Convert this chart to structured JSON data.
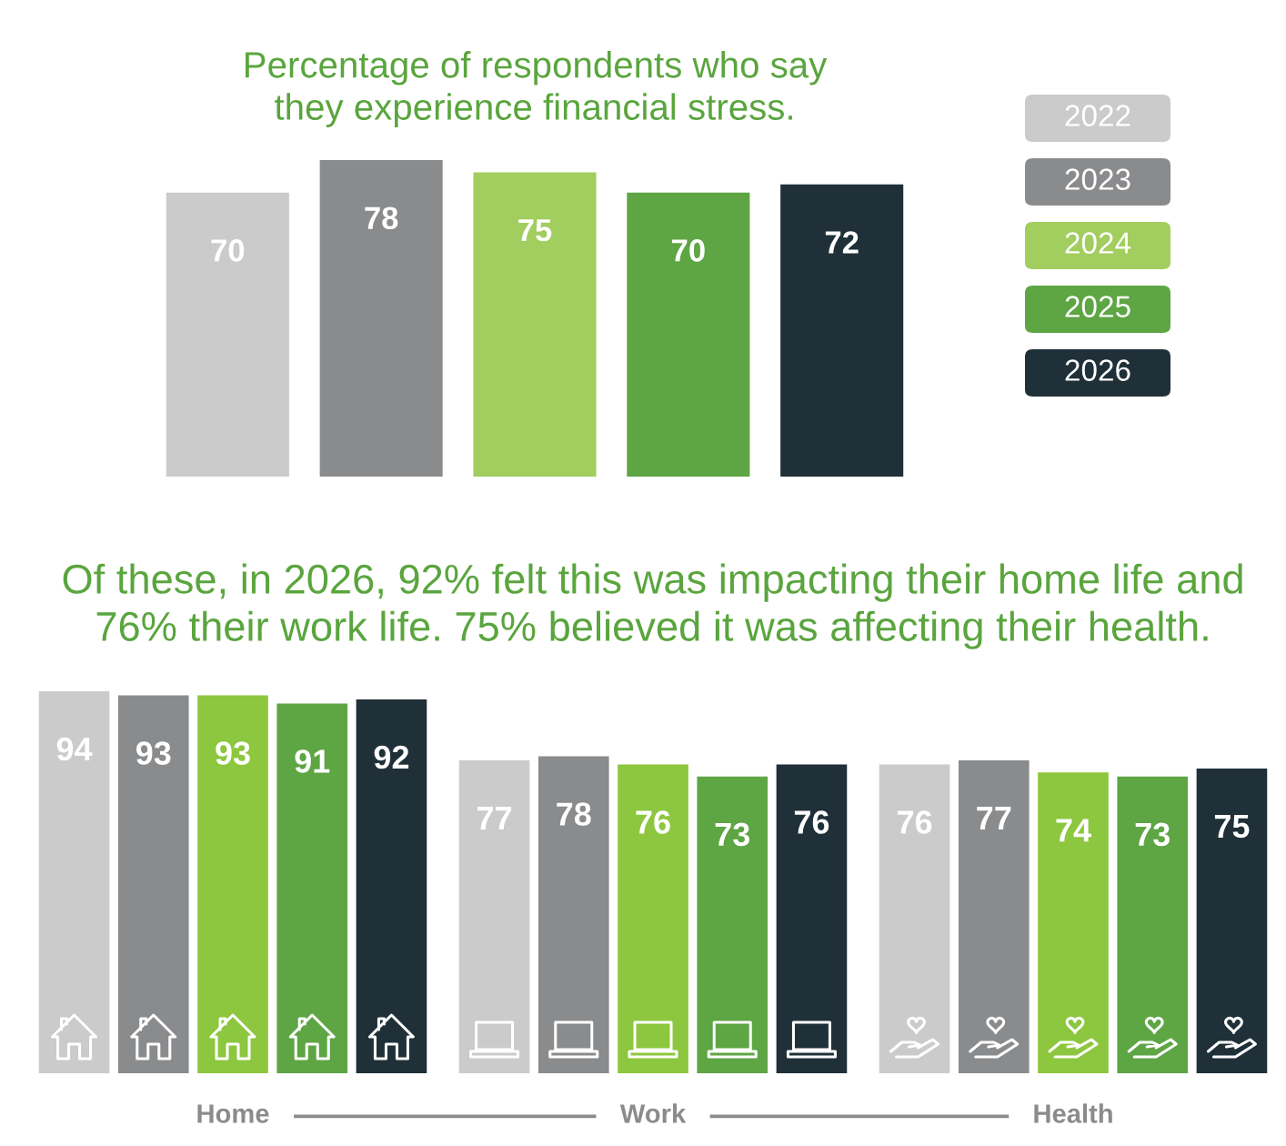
{
  "chart_data": [
    {
      "type": "bar",
      "title": "Percentage of respondents who say\nthey experience financial stress.",
      "categories": [
        null
      ],
      "series": [
        {
          "name": "2022",
          "color": "#cbcbcb",
          "values": [
            70
          ]
        },
        {
          "name": "2023",
          "color": "#8a8b8d",
          "values": [
            78
          ]
        },
        {
          "name": "2024",
          "color": "#a2cd5f",
          "values": [
            75
          ]
        },
        {
          "name": "2025",
          "color": "#5ea544",
          "values": [
            70
          ]
        },
        {
          "name": "2026",
          "color": "#1f3038",
          "values": [
            72
          ]
        }
      ],
      "data_labels": true,
      "legend": "right",
      "tick_labels": false
    },
    {
      "type": "bar",
      "title": "Of these, in 2026, 92% felt this was impacting their home life and\n76% their work life. 75% believed it was affecting their health.",
      "categories": [
        "Home",
        "Work",
        "Health"
      ],
      "series": [
        {
          "color": "#cbcbcb",
          "values": [
            94,
            77,
            76
          ]
        },
        {
          "color": "#8a8b8d",
          "values": [
            93,
            78,
            77
          ]
        },
        {
          "color": "#8dc63f",
          "values": [
            93,
            76,
            74
          ]
        },
        {
          "color": "#5ea544",
          "values": [
            91,
            73,
            73
          ]
        },
        {
          "color": "#1f3038",
          "values": [
            92,
            76,
            75
          ]
        }
      ],
      "data_labels": true,
      "tick_labels": "x"
    }
  ]
}
